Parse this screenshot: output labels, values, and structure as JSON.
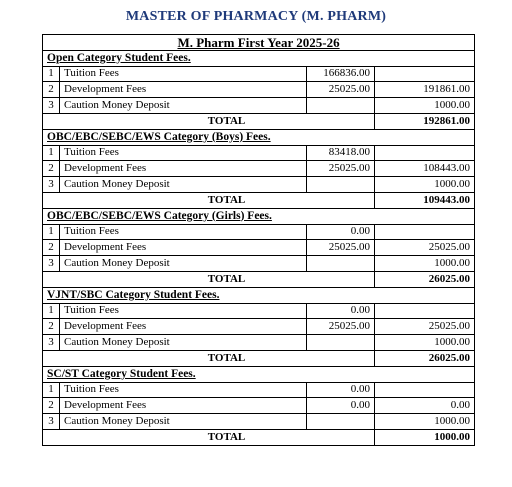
{
  "document": {
    "title": "MASTER OF PHARMACY (M. PHARM)",
    "year_heading": "M. Pharm First Year 2025-26"
  },
  "categories": [
    {
      "title": "Open Category Student Fees.",
      "rows": [
        {
          "no": "1",
          "label": "Tuition Fees",
          "amount": "166836.00",
          "total": ""
        },
        {
          "no": "2",
          "label": "Development Fees",
          "amount": "25025.00",
          "total": "191861.00"
        },
        {
          "no": "3",
          "label": "Caution Money Deposit",
          "amount": "",
          "total": "1000.00"
        }
      ],
      "total_label": "TOTAL",
      "grand_total": "192861.00"
    },
    {
      "title": "OBC/EBC/SEBC/EWS Category (Boys) Fees.",
      "rows": [
        {
          "no": "1",
          "label": "Tuition Fees",
          "amount": "83418.00",
          "total": ""
        },
        {
          "no": "2",
          "label": "Development Fees",
          "amount": "25025.00",
          "total": "108443.00"
        },
        {
          "no": "3",
          "label": "Caution Money Deposit",
          "amount": "",
          "total": "1000.00"
        }
      ],
      "total_label": "TOTAL",
      "grand_total": "109443.00"
    },
    {
      "title": "OBC/EBC/SEBC/EWS Category (Girls) Fees.",
      "rows": [
        {
          "no": "1",
          "label": "Tuition Fees",
          "amount": "0.00",
          "total": ""
        },
        {
          "no": "2",
          "label": "Development Fees",
          "amount": "25025.00",
          "total": "25025.00"
        },
        {
          "no": "3",
          "label": "Caution Money Deposit",
          "amount": "",
          "total": "1000.00"
        }
      ],
      "total_label": "TOTAL",
      "grand_total": "26025.00"
    },
    {
      "title": "VJNT/SBC Category Student Fees.",
      "rows": [
        {
          "no": "1",
          "label": "Tuition Fees",
          "amount": "0.00",
          "total": ""
        },
        {
          "no": "2",
          "label": "Development Fees",
          "amount": "25025.00",
          "total": "25025.00"
        },
        {
          "no": "3",
          "label": "Caution Money Deposit",
          "amount": "",
          "total": "1000.00"
        }
      ],
      "total_label": "TOTAL",
      "grand_total": "26025.00"
    },
    {
      "title": "SC/ST Category Student Fees.",
      "rows": [
        {
          "no": "1",
          "label": "Tuition Fees",
          "amount": "0.00",
          "total": ""
        },
        {
          "no": "2",
          "label": "Development Fees",
          "amount": "0.00",
          "total": "0.00"
        },
        {
          "no": "3",
          "label": "Caution Money Deposit",
          "amount": "",
          "total": "1000.00"
        }
      ],
      "total_label": "TOTAL",
      "grand_total": "1000.00"
    }
  ]
}
